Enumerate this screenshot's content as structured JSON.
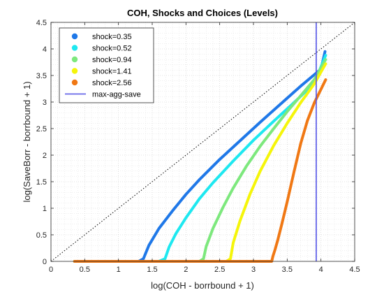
{
  "chart_data": {
    "type": "line",
    "title": "COH, Shocks and Choices (Levels)",
    "xlabel": "log(COH - borrbound + 1)",
    "ylabel": "log(SaveBorr - borrbound + 1)",
    "xlim": [
      0,
      4.5
    ],
    "ylim": [
      0,
      4.5
    ],
    "xticks": [
      "0",
      "0.5",
      "1",
      "1.5",
      "2",
      "2.5",
      "3",
      "3.5",
      "4",
      "4.5"
    ],
    "yticks": [
      "0",
      "0.5",
      "1",
      "1.5",
      "2",
      "2.5",
      "3",
      "3.5",
      "4",
      "4.5"
    ],
    "grid": "on (major and minor, dotted)",
    "legend_location": "top-left",
    "series": [
      {
        "name": "shock=0.35",
        "color": "#1f78e8",
        "x": [
          0.35,
          1.0,
          1.3,
          1.37,
          1.45,
          1.6,
          1.8,
          2.0,
          2.2,
          2.5,
          2.8,
          3.1,
          3.4,
          3.7,
          4.0,
          4.06
        ],
        "y": [
          0,
          0,
          0,
          0.05,
          0.3,
          0.62,
          0.95,
          1.26,
          1.54,
          1.92,
          2.27,
          2.62,
          2.96,
          3.3,
          3.62,
          3.95
        ]
      },
      {
        "name": "shock=0.52",
        "color": "#1ee8f0",
        "x": [
          0.35,
          1.0,
          1.6,
          1.69,
          1.75,
          1.85,
          2.0,
          2.2,
          2.4,
          2.7,
          3.0,
          3.3,
          3.6,
          3.9,
          4.07
        ],
        "y": [
          0,
          0,
          0,
          0.05,
          0.27,
          0.52,
          0.82,
          1.18,
          1.48,
          1.89,
          2.28,
          2.64,
          2.99,
          3.35,
          3.88
        ]
      },
      {
        "name": "shock=0.94",
        "color": "#7de87d",
        "x": [
          0.35,
          1.0,
          2.2,
          2.26,
          2.3,
          2.4,
          2.55,
          2.7,
          2.9,
          3.1,
          3.3,
          3.5,
          3.7,
          3.9,
          4.07
        ],
        "y": [
          0,
          0,
          0,
          0.05,
          0.28,
          0.62,
          1.02,
          1.38,
          1.8,
          2.17,
          2.5,
          2.82,
          3.12,
          3.42,
          3.8
        ]
      },
      {
        "name": "shock=1.41",
        "color": "#f5f50a",
        "x": [
          0.35,
          1.0,
          2.6,
          2.66,
          2.7,
          2.8,
          2.95,
          3.1,
          3.3,
          3.5,
          3.7,
          3.9,
          4.07
        ],
        "y": [
          0,
          0,
          0,
          0.05,
          0.35,
          0.76,
          1.27,
          1.7,
          2.18,
          2.6,
          2.99,
          3.34,
          3.72
        ]
      },
      {
        "name": "shock=2.56",
        "color": "#f07814",
        "x": [
          0.35,
          1.0,
          2.0,
          3.0,
          3.27,
          3.29,
          3.32,
          3.36,
          3.42,
          3.5,
          3.6,
          3.7,
          3.8,
          3.9,
          4.0,
          4.07
        ],
        "y": [
          0,
          0,
          0,
          0,
          0,
          0.1,
          0.22,
          0.4,
          0.7,
          1.12,
          1.68,
          2.22,
          2.65,
          2.98,
          3.24,
          3.42
        ]
      }
    ],
    "reference_lines": [
      {
        "name": "45-degree",
        "style": "dotted black",
        "x": [
          0,
          4.5
        ],
        "y": [
          0,
          4.5
        ]
      }
    ],
    "vertical_lines": [
      {
        "name": "max-agg-save",
        "color": "#5050e6",
        "x": 3.93
      }
    ]
  }
}
